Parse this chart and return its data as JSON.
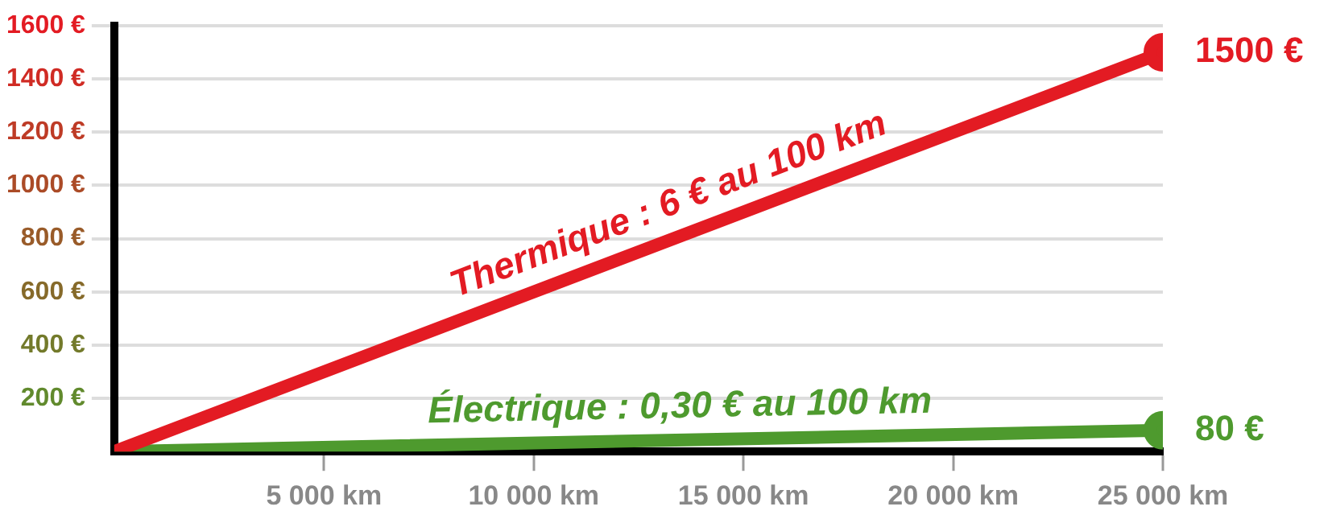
{
  "chart_data": {
    "type": "line",
    "x": [
      0,
      25000
    ],
    "series": [
      {
        "name": "Thermique : 6 € au 100 km",
        "color": "#e31b23",
        "values": [
          0,
          1500
        ],
        "value_labels": [
          null,
          "1500 €"
        ]
      },
      {
        "name": "Électrique : 0,30 € au 100 km",
        "color": "#4e9a2e",
        "values": [
          0,
          80
        ],
        "value_labels": [
          null,
          "80 €"
        ]
      }
    ],
    "xlim": [
      0,
      25000
    ],
    "xticks": [
      {
        "value": 5000,
        "label": "5 000 km"
      },
      {
        "value": 10000,
        "label": "10 000 km"
      },
      {
        "value": 15000,
        "label": "15 000 km"
      },
      {
        "value": 20000,
        "label": "20 000 km"
      },
      {
        "value": 25000,
        "label": "25 000 km"
      }
    ],
    "ylim": [
      0,
      1600
    ],
    "yticks": [
      {
        "value": 200,
        "label": "200 €"
      },
      {
        "value": 400,
        "label": "400 €"
      },
      {
        "value": 600,
        "label": "600 €"
      },
      {
        "value": 800,
        "label": "800 €"
      },
      {
        "value": 1000,
        "label": "1000 €"
      },
      {
        "value": 1200,
        "label": "1200 €"
      },
      {
        "value": 1400,
        "label": "1400 €"
      },
      {
        "value": 1600,
        "label": "1600 €"
      }
    ],
    "grid": "y",
    "legend": false,
    "marker": "circle",
    "line_style": "solid"
  }
}
